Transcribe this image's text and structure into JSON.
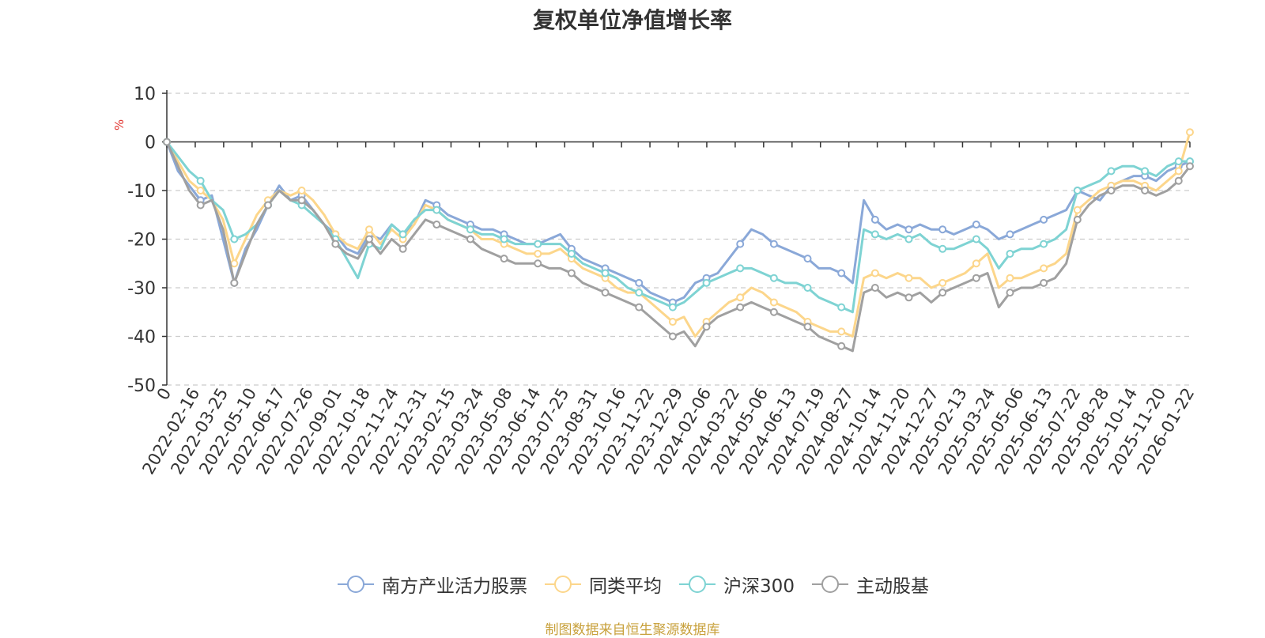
{
  "chart_data": {
    "type": "line",
    "title": "复权单位净值增长率",
    "ylabel": "%",
    "xlabel": "",
    "ylim": [
      -50,
      10
    ],
    "yticks": [
      10,
      0,
      -10,
      -20,
      -30,
      -40,
      -50
    ],
    "x_tick_labels": [
      "0",
      "2022-02-16",
      "2022-03-25",
      "2022-05-10",
      "2022-06-17",
      "2022-07-26",
      "2022-09-01",
      "2022-10-18",
      "2022-11-24",
      "2022-12-31",
      "2023-02-15",
      "2023-03-24",
      "2023-05-08",
      "2023-06-14",
      "2023-07-25",
      "2023-08-31",
      "2023-10-16",
      "2023-11-22",
      "2023-12-29",
      "2024-02-06",
      "2024-03-22",
      "2024-05-06",
      "2024-06-13",
      "2024-07-19",
      "2024-08-27",
      "2024-10-14",
      "2024-11-20",
      "2024-12-27",
      "2025-02-13",
      "2025-03-24",
      "2025-05-06",
      "2025-06-13",
      "2025-07-22",
      "2025-08-28",
      "2025-10-14",
      "2025-11-20",
      "2026-01-22"
    ],
    "grid": "horizontal-dashed",
    "legend_position": "bottom-center",
    "series": [
      {
        "name": "南方产业活力股票",
        "color": "#8aa8d8",
        "values": [
          0,
          -6,
          -9,
          -12,
          -11,
          -20,
          -29,
          -22,
          -18,
          -13,
          -9,
          -12,
          -11,
          -14,
          -17,
          -19,
          -22,
          -23,
          -19,
          -20,
          -17,
          -19,
          -17,
          -12,
          -13,
          -15,
          -16,
          -17,
          -18,
          -18,
          -19,
          -20,
          -21,
          -21,
          -20,
          -19,
          -22,
          -24,
          -25,
          -26,
          -27,
          -28,
          -29,
          -31,
          -32,
          -33,
          -32,
          -29,
          -28,
          -27,
          -24,
          -21,
          -18,
          -19,
          -21,
          -22,
          -23,
          -24,
          -26,
          -26,
          -27,
          -29,
          -12,
          -16,
          -18,
          -17,
          -18,
          -17,
          -18,
          -18,
          -19,
          -18,
          -17,
          -18,
          -20,
          -19,
          -18,
          -17,
          -16,
          -15,
          -14,
          -10,
          -11,
          -12,
          -9,
          -8,
          -7,
          -7,
          -8,
          -6,
          -5,
          -4
        ]
      },
      {
        "name": "同类平均",
        "color": "#fcd68b",
        "values": [
          0,
          -4,
          -8,
          -10,
          -12,
          -16,
          -25,
          -20,
          -15,
          -12,
          -10,
          -11,
          -10,
          -12,
          -15,
          -19,
          -21,
          -22,
          -18,
          -21,
          -18,
          -20,
          -17,
          -13,
          -14,
          -16,
          -17,
          -18,
          -20,
          -20,
          -21,
          -22,
          -23,
          -23,
          -23,
          -22,
          -24,
          -26,
          -27,
          -28,
          -30,
          -31,
          -31,
          -33,
          -35,
          -37,
          -36,
          -40,
          -37,
          -35,
          -33,
          -32,
          -30,
          -31,
          -33,
          -34,
          -35,
          -37,
          -38,
          -39,
          -39,
          -40,
          -28,
          -27,
          -28,
          -27,
          -28,
          -28,
          -30,
          -29,
          -28,
          -27,
          -25,
          -23,
          -30,
          -28,
          -28,
          -27,
          -26,
          -25,
          -23,
          -14,
          -12,
          -10,
          -9,
          -8,
          -8,
          -9,
          -10,
          -8,
          -6,
          2
        ]
      },
      {
        "name": "沪深300",
        "color": "#7ed3d3",
        "values": [
          0,
          -3,
          -6,
          -8,
          -12,
          -14,
          -20,
          -19,
          -17,
          -13,
          -10,
          -12,
          -13,
          -15,
          -17,
          -20,
          -24,
          -28,
          -21,
          -22,
          -17,
          -19,
          -16,
          -14,
          -14,
          -16,
          -17,
          -18,
          -19,
          -19,
          -20,
          -21,
          -21,
          -21,
          -21,
          -21,
          -23,
          -25,
          -26,
          -27,
          -28,
          -30,
          -31,
          -32,
          -33,
          -34,
          -33,
          -31,
          -29,
          -28,
          -27,
          -26,
          -26,
          -27,
          -28,
          -29,
          -29,
          -30,
          -32,
          -33,
          -34,
          -35,
          -18,
          -19,
          -20,
          -19,
          -20,
          -19,
          -21,
          -22,
          -22,
          -21,
          -20,
          -22,
          -26,
          -23,
          -22,
          -22,
          -21,
          -20,
          -18,
          -10,
          -9,
          -8,
          -6,
          -5,
          -5,
          -6,
          -7,
          -5,
          -4,
          -4
        ]
      },
      {
        "name": "主动股基",
        "color": "#a0a0a0",
        "values": [
          0,
          -5,
          -10,
          -13,
          -12,
          -18,
          -29,
          -23,
          -17,
          -13,
          -10,
          -12,
          -12,
          -14,
          -17,
          -21,
          -23,
          -24,
          -20,
          -23,
          -20,
          -22,
          -19,
          -16,
          -17,
          -18,
          -19,
          -20,
          -22,
          -23,
          -24,
          -25,
          -25,
          -25,
          -26,
          -26,
          -27,
          -29,
          -30,
          -31,
          -32,
          -33,
          -34,
          -36,
          -38,
          -40,
          -39,
          -42,
          -38,
          -36,
          -35,
          -34,
          -33,
          -34,
          -35,
          -36,
          -37,
          -38,
          -40,
          -41,
          -42,
          -43,
          -31,
          -30,
          -32,
          -31,
          -32,
          -31,
          -33,
          -31,
          -30,
          -29,
          -28,
          -27,
          -34,
          -31,
          -30,
          -30,
          -29,
          -28,
          -25,
          -16,
          -13,
          -11,
          -10,
          -9,
          -9,
          -10,
          -11,
          -10,
          -8,
          -5
        ]
      }
    ]
  },
  "footer": {
    "source": "制图数据来自恒生聚源数据库"
  }
}
